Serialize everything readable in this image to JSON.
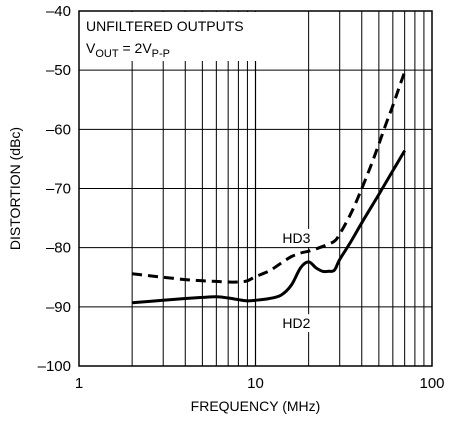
{
  "chart_data": {
    "type": "line",
    "xlabel": "FREQUENCY (MHz)",
    "ylabel": "DISTORTION (dBc)",
    "xscale": "log",
    "xlim": [
      1,
      100
    ],
    "ylim": [
      -100,
      -40
    ],
    "grid": true,
    "x_ticks": [
      {
        "value": 1,
        "label": "1"
      },
      {
        "value": 10,
        "label": "10"
      },
      {
        "value": 100,
        "label": "100"
      }
    ],
    "y_ticks": [
      {
        "value": -40,
        "label": "–40"
      },
      {
        "value": -50,
        "label": "–50"
      },
      {
        "value": -60,
        "label": "–60"
      },
      {
        "value": -70,
        "label": "–70"
      },
      {
        "value": -80,
        "label": "–80"
      },
      {
        "value": -90,
        "label": "–90"
      },
      {
        "value": -100,
        "label": "–100"
      }
    ],
    "annotation": {
      "line1": "UNFILTERED OUTPUTS",
      "line2_main": "V",
      "line2_sub1": "OUT",
      "line2_mid": " = 2V",
      "line2_sub2": "P-P"
    },
    "series": [
      {
        "name": "HD2",
        "style": "solid",
        "color": "#000000",
        "x": [
          2,
          3,
          4,
          5,
          6,
          7,
          8,
          9,
          10,
          12,
          14,
          16,
          18,
          20,
          22,
          24,
          26,
          28,
          30,
          35,
          40,
          50,
          60,
          70
        ],
        "y": [
          -89.3,
          -88.9,
          -88.6,
          -88.4,
          -88.3,
          -88.5,
          -88.8,
          -89.0,
          -88.9,
          -88.6,
          -88.0,
          -86.3,
          -83.4,
          -82.4,
          -83.4,
          -84.0,
          -84.0,
          -83.8,
          -82.0,
          -78.8,
          -75.8,
          -71.0,
          -67.0,
          -63.6
        ]
      },
      {
        "name": "HD3",
        "style": "dashed",
        "color": "#000000",
        "x": [
          2,
          3,
          4,
          5,
          6,
          7,
          8,
          9,
          10,
          12,
          14,
          16,
          18,
          20,
          22,
          25,
          28,
          30,
          35,
          40,
          45,
          50,
          55,
          60,
          65,
          70
        ],
        "y": [
          -84.4,
          -85.0,
          -85.4,
          -85.6,
          -85.7,
          -85.8,
          -85.8,
          -85.6,
          -84.9,
          -83.9,
          -82.6,
          -81.5,
          -80.9,
          -80.6,
          -80.2,
          -79.6,
          -78.9,
          -77.7,
          -74.0,
          -70.0,
          -66.2,
          -62.5,
          -59.0,
          -56.0,
          -53.0,
          -50.3
        ]
      }
    ],
    "series_labels": {
      "HD3": "HD3",
      "HD2": "HD2"
    }
  }
}
